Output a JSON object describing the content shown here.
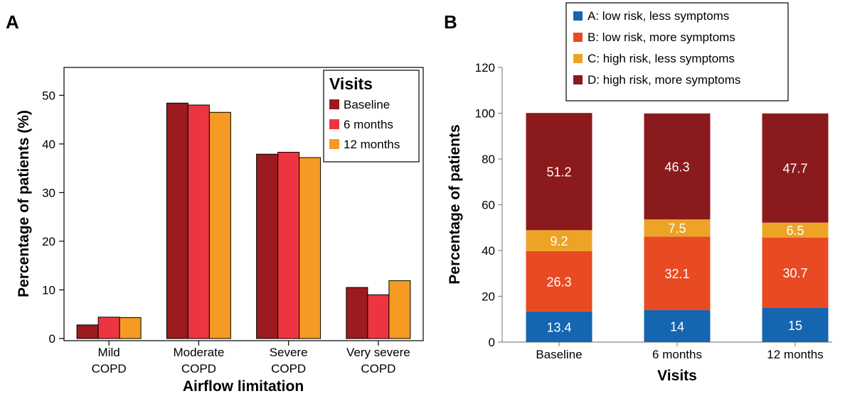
{
  "panels": {
    "a_label": "A",
    "b_label": "B"
  },
  "chart_data": [
    {
      "type": "bar",
      "panel": "A",
      "categories": [
        [
          "Mild",
          "COPD"
        ],
        [
          "Moderate",
          "COPD"
        ],
        [
          "Severe",
          "COPD"
        ],
        [
          "Very severe",
          "COPD"
        ]
      ],
      "series": [
        {
          "name": "Baseline",
          "color": "#9b1b1e",
          "values": [
            2.8,
            48.4,
            37.9,
            10.5
          ]
        },
        {
          "name": "6 months",
          "color": "#ee3440",
          "values": [
            4.4,
            48.0,
            38.3,
            9.0
          ]
        },
        {
          "name": "12 months",
          "color": "#f59a22",
          "values": [
            4.3,
            46.5,
            37.2,
            11.9
          ]
        }
      ],
      "xlabel": "Airflow limitation",
      "ylabel": "Percentage of patients (%)",
      "ylim": [
        0,
        55
      ],
      "yticks": [
        0,
        10,
        20,
        30,
        40,
        50
      ],
      "legend_title": "Visits",
      "legend_position": "top-right",
      "grid": false
    },
    {
      "type": "bar",
      "stacked": true,
      "panel": "B",
      "categories": [
        "Baseline",
        "6 months",
        "12 months"
      ],
      "series": [
        {
          "name": "A: low risk, less symptoms",
          "color": "#1565b0",
          "values": [
            13.4,
            14,
            15
          ],
          "labels": [
            "13.4",
            "14",
            "15"
          ]
        },
        {
          "name": "B: low risk, more symptoms",
          "color": "#e84b23",
          "values": [
            26.3,
            32.1,
            30.7
          ],
          "labels": [
            "26.3",
            "32.1",
            "30.7"
          ]
        },
        {
          "name": "C: high risk, less symptoms",
          "color": "#eda426",
          "values": [
            9.2,
            7.5,
            6.5
          ],
          "labels": [
            "9.2",
            "7.5",
            "6.5"
          ]
        },
        {
          "name": "D: high risk, more symptoms",
          "color": "#8b1a1c",
          "values": [
            51.2,
            46.3,
            47.7
          ],
          "labels": [
            "51.2",
            "46.3",
            "47.7"
          ]
        }
      ],
      "xlabel": "Visits",
      "ylabel": "Percentage of patients",
      "ylim": [
        0,
        120
      ],
      "yticks": [
        0,
        20,
        40,
        60,
        80,
        100,
        120
      ],
      "legend_position": "top",
      "grid": false
    }
  ]
}
